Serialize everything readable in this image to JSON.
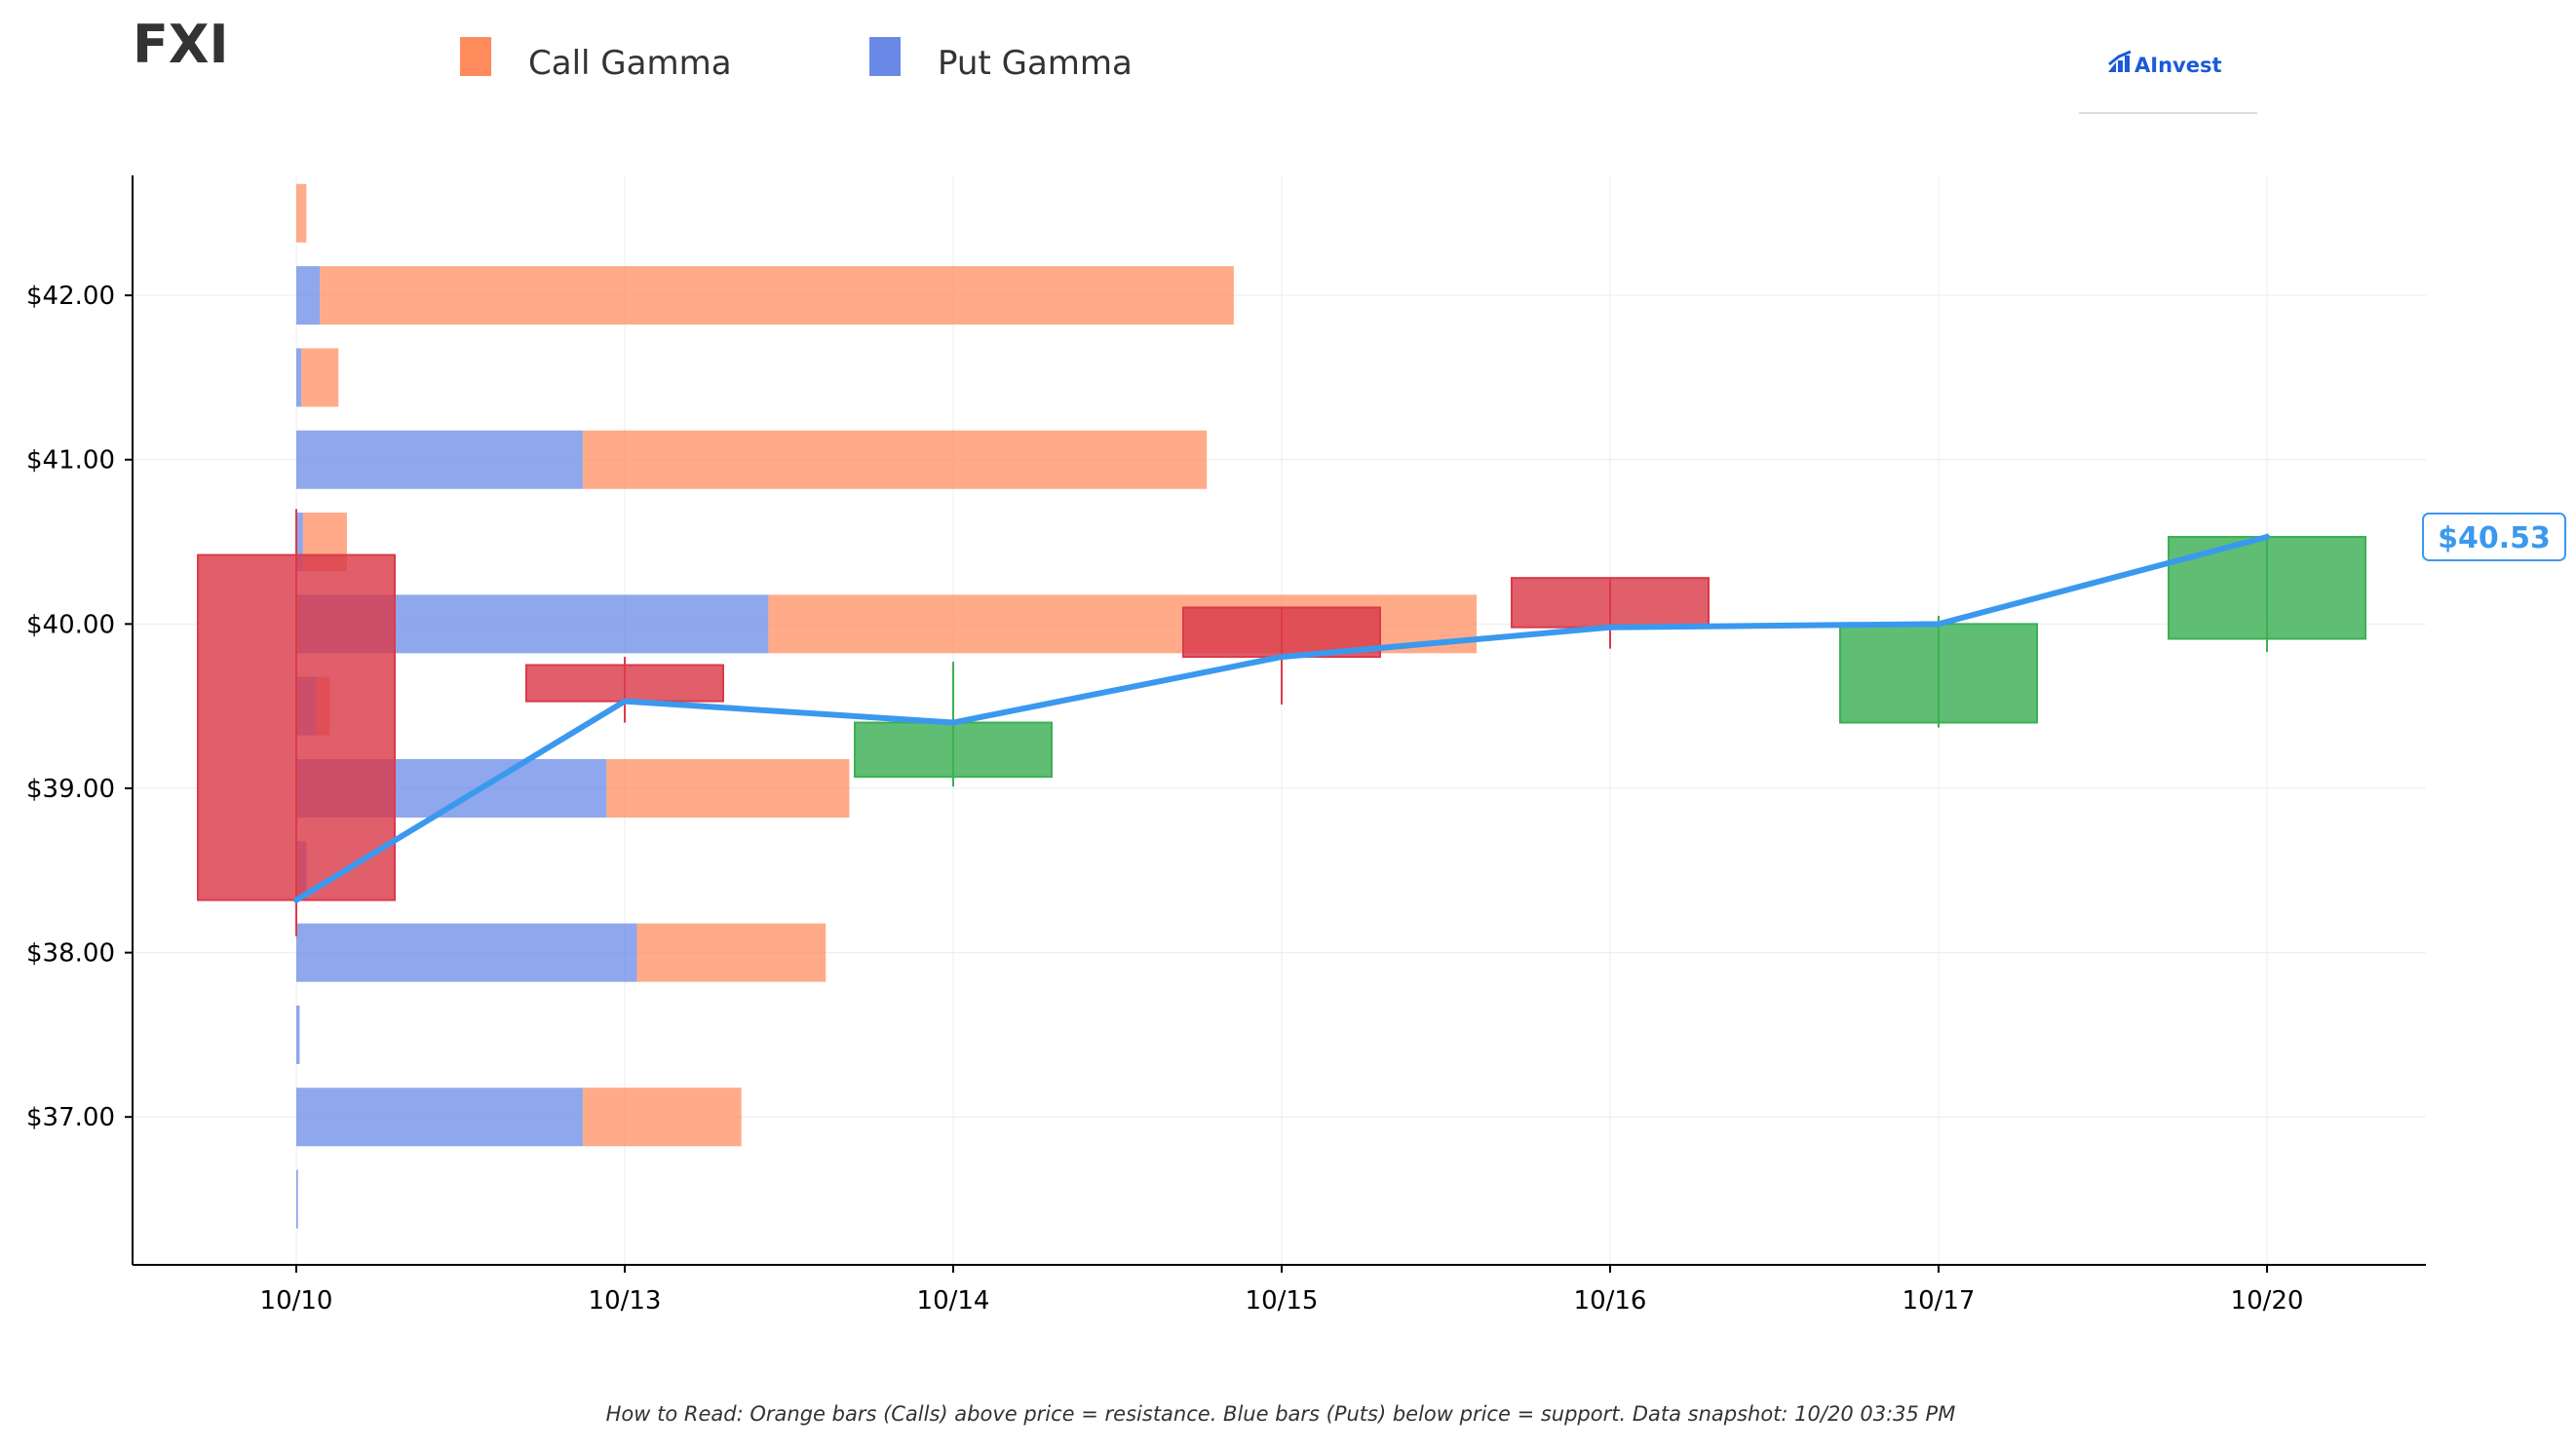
{
  "ticker": "FXI",
  "brand": "AInvest",
  "footer_note": "How to Read: Orange bars (Calls) above price = resistance. Blue bars (Puts) below price = support. Data snapshot: 10/20 03:35 PM",
  "price_label": "$40.53",
  "colors": {
    "call": "#FF8A5B",
    "put": "#6A89E6",
    "up": "#3CB054",
    "down": "#DB3A4A",
    "line": "#3A99EE",
    "brand": "#1A5BD8"
  },
  "chart_data": {
    "type": "candlestick+horizontal-bar+line",
    "ylim": [
      36.1,
      42.73
    ],
    "xlim": [
      -0.5,
      6.5
    ],
    "grid": true,
    "legend": {
      "position": "top-left",
      "entries": [
        {
          "name": "Call Gamma",
          "color": "call"
        },
        {
          "name": "Put Gamma",
          "color": "put"
        }
      ]
    },
    "categories": [
      "10/10",
      "10/13",
      "10/14",
      "10/15",
      "10/16",
      "10/17",
      "10/20"
    ],
    "y_ticks": [
      {
        "value": 37.0,
        "label": "$37.00"
      },
      {
        "value": 38.0,
        "label": "$38.00"
      },
      {
        "value": 39.0,
        "label": "$39.00"
      },
      {
        "value": 40.0,
        "label": "$40.00"
      },
      {
        "value": 41.0,
        "label": "$41.00"
      },
      {
        "value": 42.0,
        "label": "$42.00"
      }
    ],
    "candles": [
      {
        "date": "10/10",
        "open": 40.42,
        "high": 40.7,
        "low": 38.1,
        "close": 38.32
      },
      {
        "date": "10/13",
        "open": 39.75,
        "high": 39.8,
        "low": 39.4,
        "close": 39.53
      },
      {
        "date": "10/14",
        "open": 39.07,
        "high": 39.77,
        "low": 39.01,
        "close": 39.4
      },
      {
        "date": "10/15",
        "open": 40.1,
        "high": 40.1,
        "low": 39.51,
        "close": 39.8
      },
      {
        "date": "10/16",
        "open": 40.28,
        "high": 40.28,
        "low": 39.85,
        "close": 39.98
      },
      {
        "date": "10/17",
        "open": 39.4,
        "high": 40.05,
        "low": 39.37,
        "close": 40.0
      },
      {
        "date": "10/20",
        "open": 39.91,
        "high": 40.55,
        "low": 39.83,
        "close": 40.53
      }
    ],
    "close_line": [
      38.32,
      39.53,
      39.4,
      39.8,
      39.98,
      40.0,
      40.53
    ],
    "gamma_levels": [
      {
        "strike": 42.5,
        "put": 0.0,
        "call": 0.03
      },
      {
        "strike": 42.0,
        "put": 0.07,
        "call": 2.71
      },
      {
        "strike": 41.5,
        "put": 0.015,
        "call": 0.11
      },
      {
        "strike": 41.0,
        "put": 0.85,
        "call": 1.85
      },
      {
        "strike": 40.5,
        "put": 0.02,
        "call": 0.13
      },
      {
        "strike": 40.0,
        "put": 1.4,
        "call": 2.1
      },
      {
        "strike": 39.5,
        "put": 0.06,
        "call": 0.04
      },
      {
        "strike": 39.0,
        "put": 0.92,
        "call": 0.72
      },
      {
        "strike": 38.5,
        "put": 0.03,
        "call": 0.0
      },
      {
        "strike": 38.0,
        "put": 1.01,
        "call": 0.56
      },
      {
        "strike": 37.5,
        "put": 0.01,
        "call": 0.0
      },
      {
        "strike": 37.0,
        "put": 0.85,
        "call": 0.47
      },
      {
        "strike": 36.5,
        "put": 0.005,
        "call": 0.0
      }
    ],
    "last_price": 40.53
  }
}
